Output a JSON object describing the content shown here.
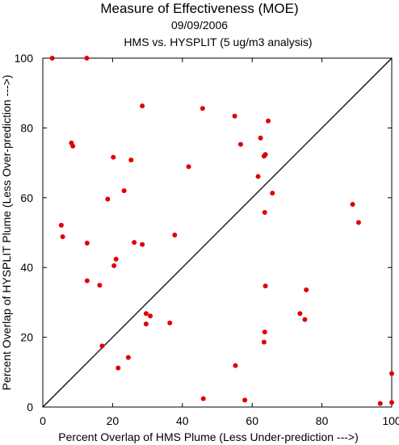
{
  "chart_data": {
    "type": "scatter",
    "title": "Measure of Effectiveness (MOE)",
    "subtitle": "09/09/2006",
    "subtitle2": "HMS vs. HYSPLIT  (5 ug/m3 analysis)",
    "xlabel": "Percent Overlap of HMS Plume (Less Under-prediction --->)",
    "ylabel": "Percent Overlap of HYSPLIT Plume (Less Over-prediction --->)",
    "xlim": [
      0,
      100
    ],
    "ylim": [
      0,
      100
    ],
    "xticks": [
      0,
      20,
      40,
      60,
      80,
      100
    ],
    "yticks": [
      0,
      20,
      40,
      60,
      80,
      100
    ],
    "grid": false,
    "reference_line": "diagonal y = x",
    "point_color": "#e00000",
    "points": [
      {
        "x": 2.7,
        "y": 100
      },
      {
        "x": 12.6,
        "y": 100
      },
      {
        "x": 28.5,
        "y": 86.3
      },
      {
        "x": 45.8,
        "y": 85.6
      },
      {
        "x": 55.0,
        "y": 83.4
      },
      {
        "x": 64.6,
        "y": 82.0
      },
      {
        "x": 62.4,
        "y": 77.1
      },
      {
        "x": 56.7,
        "y": 75.3
      },
      {
        "x": 8.2,
        "y": 75.7
      },
      {
        "x": 8.6,
        "y": 74.8
      },
      {
        "x": 63.8,
        "y": 72.4
      },
      {
        "x": 63.4,
        "y": 71.9
      },
      {
        "x": 20.2,
        "y": 71.6
      },
      {
        "x": 25.3,
        "y": 70.8
      },
      {
        "x": 41.8,
        "y": 68.9
      },
      {
        "x": 61.7,
        "y": 66.1
      },
      {
        "x": 23.3,
        "y": 62.0
      },
      {
        "x": 65.8,
        "y": 61.3
      },
      {
        "x": 18.6,
        "y": 59.6
      },
      {
        "x": 88.8,
        "y": 58.1
      },
      {
        "x": 63.6,
        "y": 55.8
      },
      {
        "x": 90.5,
        "y": 52.9
      },
      {
        "x": 5.3,
        "y": 52.1
      },
      {
        "x": 5.7,
        "y": 48.8
      },
      {
        "x": 37.8,
        "y": 49.3
      },
      {
        "x": 12.7,
        "y": 47.0
      },
      {
        "x": 26.2,
        "y": 47.2
      },
      {
        "x": 28.5,
        "y": 46.6
      },
      {
        "x": 21.0,
        "y": 42.4
      },
      {
        "x": 20.4,
        "y": 40.5
      },
      {
        "x": 12.7,
        "y": 36.2
      },
      {
        "x": 16.3,
        "y": 34.9
      },
      {
        "x": 63.8,
        "y": 34.7
      },
      {
        "x": 75.5,
        "y": 33.6
      },
      {
        "x": 29.6,
        "y": 26.8
      },
      {
        "x": 30.8,
        "y": 26.1
      },
      {
        "x": 73.7,
        "y": 26.8
      },
      {
        "x": 75.1,
        "y": 25.1
      },
      {
        "x": 29.6,
        "y": 23.8
      },
      {
        "x": 36.4,
        "y": 24.1
      },
      {
        "x": 63.6,
        "y": 21.5
      },
      {
        "x": 63.4,
        "y": 18.6
      },
      {
        "x": 17.0,
        "y": 17.5
      },
      {
        "x": 24.5,
        "y": 14.2
      },
      {
        "x": 21.6,
        "y": 11.2
      },
      {
        "x": 55.2,
        "y": 11.9
      },
      {
        "x": 46.0,
        "y": 2.4
      },
      {
        "x": 57.9,
        "y": 2.0
      },
      {
        "x": 96.7,
        "y": 1.0
      },
      {
        "x": 100,
        "y": 1.3
      },
      {
        "x": 100,
        "y": 9.6
      }
    ]
  }
}
